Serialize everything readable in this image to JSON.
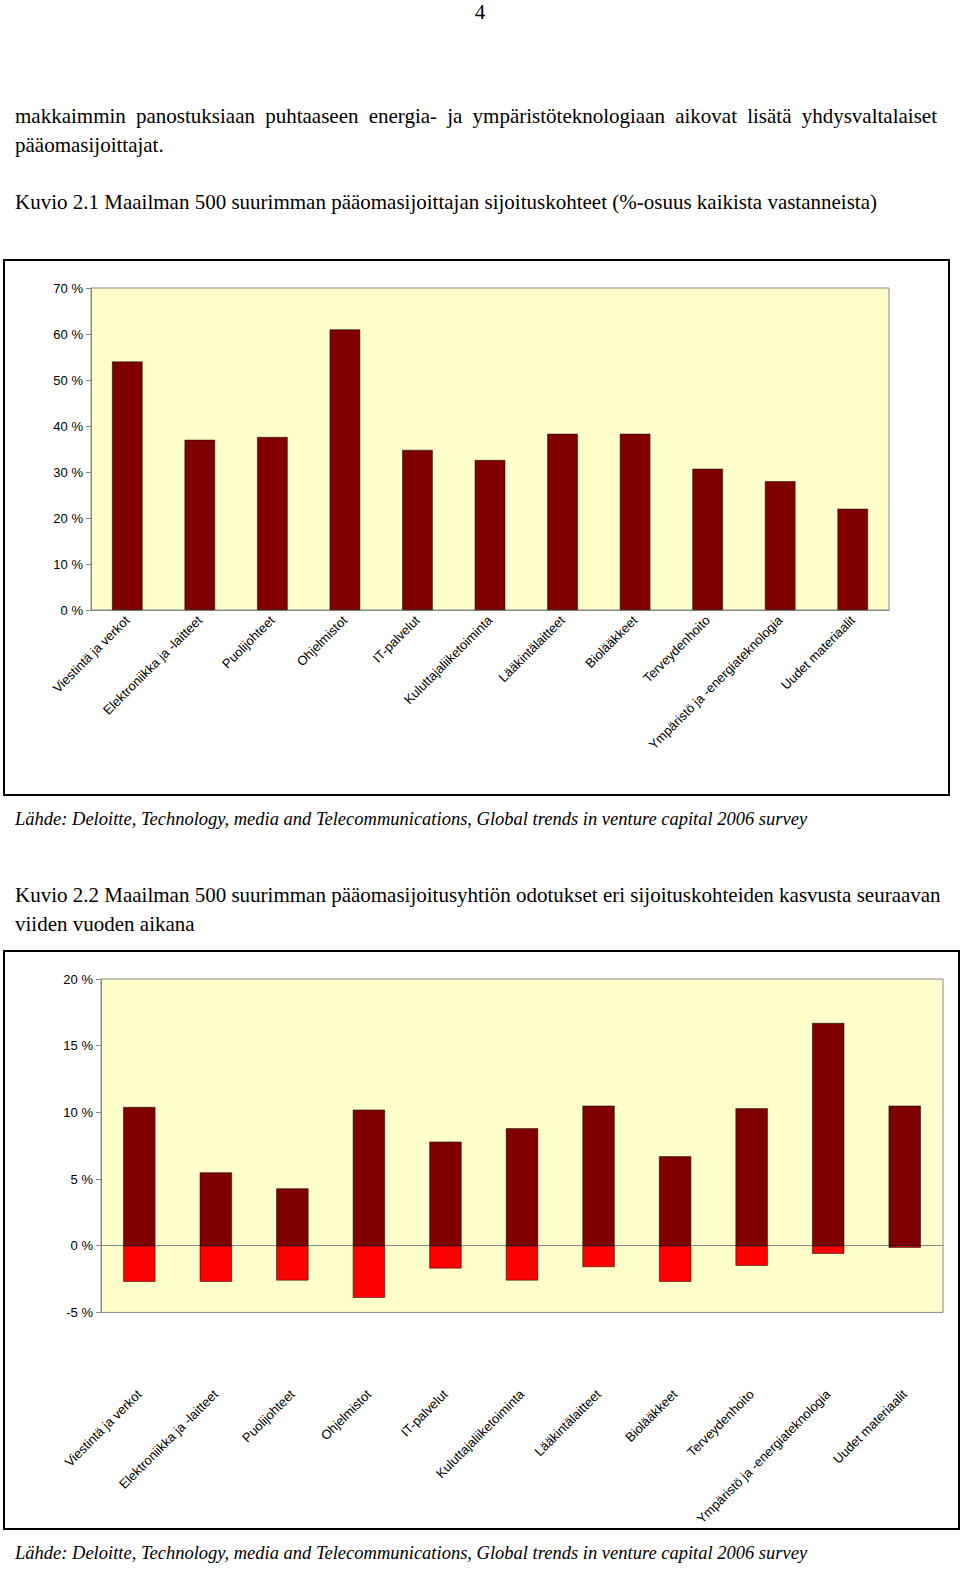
{
  "page_number": "4",
  "paragraph": "makkaimmin panostuksiaan puhtaaseen energia- ja ympäristöteknologiaan aikovat lisätä yhdysvaltalaiset pääomasijoittajat.",
  "chart_data": [
    {
      "type": "bar",
      "title": "Kuvio 2.1 Maailman 500 suurimman pääomasijoittajan sijoituskohteet (%-osuus kaikista vastanneista)",
      "source": "Lähde: Deloitte, Technology, media and Telecommunications, Global trends in venture capital 2006 survey",
      "categories": [
        "Viestintä ja verkot",
        "Elektroniikka ja -laitteet",
        "Puolijohteet",
        "Ohjelmistot",
        "IT-palvelut",
        "Kuluttajaliiketoiminta",
        "Lääkintälaitteet",
        "Biolääkkeet",
        "Terveydenhoito",
        "Ympäristö ja -energiateknologia",
        "Uudet materiaalit"
      ],
      "values": [
        54,
        37,
        37.6,
        61,
        34.8,
        32.6,
        38.3,
        38.3,
        30.7,
        28,
        22
      ],
      "color": "#800000",
      "ylim": [
        0,
        70
      ],
      "yticks": [
        {
          "value": 0,
          "label": "0 %"
        },
        {
          "value": 10,
          "label": "10 %"
        },
        {
          "value": 20,
          "label": "20 %"
        },
        {
          "value": 30,
          "label": "30 %"
        },
        {
          "value": 40,
          "label": "40 %"
        },
        {
          "value": 50,
          "label": "50 %"
        },
        {
          "value": 60,
          "label": "60 %"
        },
        {
          "value": 70,
          "label": "70 %"
        }
      ],
      "grid": false
    },
    {
      "type": "bar",
      "title": "Kuvio 2.2 Maailman 500 suurimman pääomasijoitusyhtiön odotukset eri sijoituskohteiden kasvusta seuraavan viiden vuoden aikana",
      "source": "Lähde: Deloitte, Technology, media and Telecommunications, Global trends in venture capital 2006 survey",
      "categories": [
        "Viestintä ja verkot",
        "Elektroniikka ja -laitteet",
        "Puolijohteet",
        "Ohjelmistot",
        "IT-palvelut",
        "Kuluttajaliiketoiminta",
        "Lääkintälaitteet",
        "Biolääkkeet",
        "Terveydenhoito",
        "Ympäristö ja -energiateknologia",
        "Uudet materiaalit"
      ],
      "series": [
        {
          "color": "#800000",
          "values": [
            10.4,
            5.5,
            4.3,
            10.2,
            7.8,
            8.8,
            10.5,
            6.7,
            10.3,
            16.7,
            10.5
          ]
        },
        {
          "color": "#FF0000",
          "values": [
            -2.7,
            -2.7,
            -2.6,
            -3.9,
            -1.7,
            -2.6,
            -1.6,
            -2.7,
            -1.5,
            -0.6,
            -0.15
          ]
        }
      ],
      "stacked": true,
      "ylim": [
        -5,
        20
      ],
      "yticks": [
        {
          "value": -5,
          "label": "-5 %"
        },
        {
          "value": 0,
          "label": "0 %"
        },
        {
          "value": 5,
          "label": "5 %"
        },
        {
          "value": 10,
          "label": "10 %"
        },
        {
          "value": 15,
          "label": "15 %"
        },
        {
          "value": 20,
          "label": "20 %"
        }
      ],
      "grid": false
    }
  ]
}
